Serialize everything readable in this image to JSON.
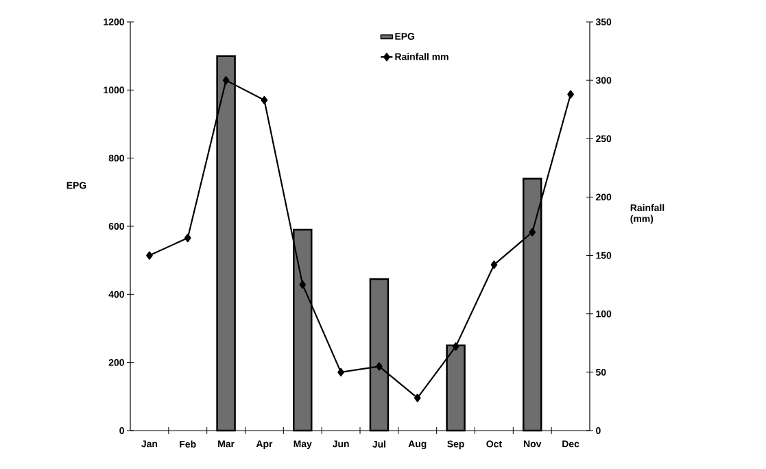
{
  "chart_data": {
    "type": "bar",
    "categories": [
      "Jan",
      "Feb",
      "Mar",
      "Apr",
      "May",
      "Jun",
      "Jul",
      "Aug",
      "Sep",
      "Oct",
      "Nov",
      "Dec"
    ],
    "ylabel": "EPG",
    "y2label": "Rainfall (mm)",
    "ylim": [
      0,
      1200
    ],
    "yticks": [
      0,
      200,
      400,
      600,
      800,
      1000,
      1200
    ],
    "y2lim": [
      0,
      350
    ],
    "y2ticks": [
      0,
      50,
      100,
      150,
      200,
      250,
      300,
      350
    ],
    "legend": "top",
    "marker": "diamond",
    "grid": false,
    "series": [
      {
        "name": "EPG",
        "color": "#6e6e6e",
        "values": [
          null,
          null,
          1100,
          null,
          590,
          null,
          445,
          null,
          250,
          null,
          740,
          null
        ]
      },
      {
        "name": "Rainfall mm",
        "type": "line",
        "axis": "y2",
        "color": "#000000",
        "values": [
          150,
          165,
          300,
          283,
          125,
          50,
          55,
          28,
          72,
          142,
          170,
          288
        ]
      }
    ]
  }
}
